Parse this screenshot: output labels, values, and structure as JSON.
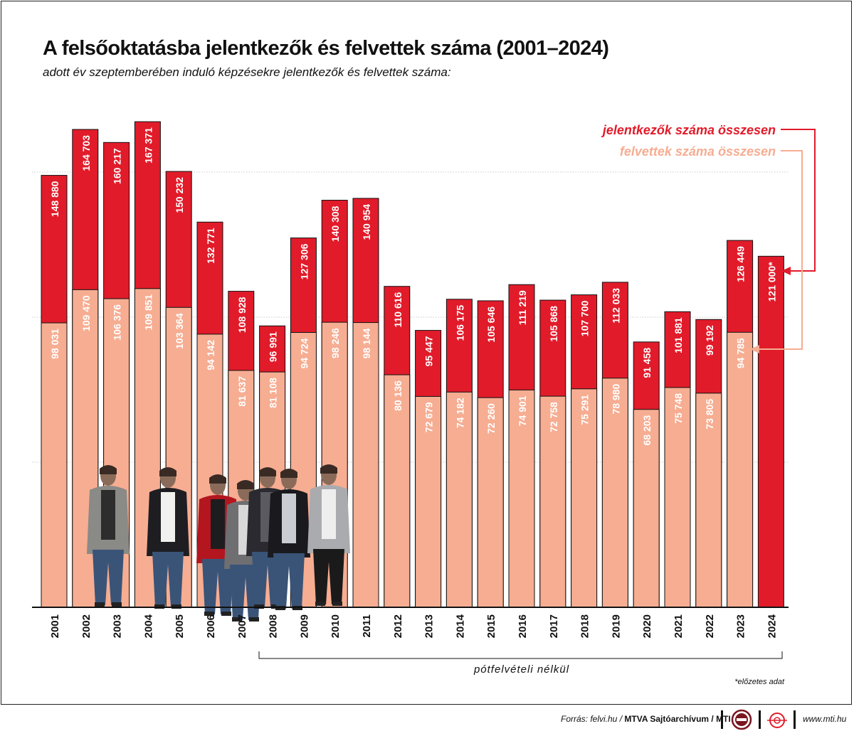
{
  "header": {
    "title": "A felsőoktatásba jelentkezők és felvettek száma (2001–2024)",
    "subtitle": "adott év szeptemberében induló képzésekre jelentkezők és felvettek száma:"
  },
  "colors": {
    "applicants": "#e11b2a",
    "admitted": "#f6ad92",
    "grid": "#bbbbbb",
    "text": "#111111"
  },
  "chart_data": {
    "type": "bar",
    "categories": [
      "2001",
      "2002",
      "2003",
      "2004",
      "2005",
      "2006",
      "2007",
      "2008",
      "2009",
      "2010",
      "2011",
      "2012",
      "2013",
      "2014",
      "2015",
      "2016",
      "2017",
      "2018",
      "2019",
      "2020",
      "2021",
      "2022",
      "2023",
      "2024"
    ],
    "series": [
      {
        "name": "jelentkezők száma összesen",
        "values": [
          148880,
          164703,
          160217,
          167371,
          150232,
          132771,
          108928,
          96991,
          127306,
          140308,
          140954,
          110616,
          95447,
          106175,
          105646,
          111219,
          105868,
          107700,
          112033,
          91458,
          101881,
          99192,
          126449,
          121000
        ],
        "labels": [
          "148 880",
          "164 703",
          "160 217",
          "167 371",
          "150 232",
          "132 771",
          "108 928",
          "96 991",
          "127 306",
          "140 308",
          "140 954",
          "110 616",
          "95 447",
          "106 175",
          "105 646",
          "111 219",
          "105 868",
          "107 700",
          "112 033",
          "91 458",
          "101 881",
          "99 192",
          "126 449",
          "121 000*"
        ]
      },
      {
        "name": "felvettek száma összesen",
        "values": [
          98031,
          109470,
          106376,
          109851,
          103364,
          94142,
          81637,
          81108,
          94724,
          98246,
          98144,
          80136,
          72679,
          74182,
          72260,
          74901,
          72758,
          75291,
          78980,
          68203,
          75748,
          73805,
          94785,
          null
        ],
        "labels": [
          "98 031",
          "109 470",
          "106 376",
          "109 851",
          "103 364",
          "94 142",
          "81 637",
          "81 108",
          "94 724",
          "98 246",
          "98 144",
          "80 136",
          "72 679",
          "74 182",
          "72 260",
          "74 901",
          "72 758",
          "75 291",
          "78 980",
          "68 203",
          "75 748",
          "73 805",
          "94 785",
          ""
        ]
      }
    ],
    "ylim": [
      0,
      150000
    ],
    "gridlines": [
      50000,
      100000,
      150000
    ],
    "legend_position": "top-right",
    "annotations": {
      "bracket_label": "pótfelvételi nélkül",
      "bracket_range": [
        "2008",
        "2024"
      ],
      "footnote": "*előzetes adat"
    }
  },
  "footer": {
    "source_prefix": "Forrás: felvi.hu / ",
    "source_bold": "MTVA Sajtóarchívum / MTI",
    "logo1_icon": "mtva-logo-icon",
    "logo2_icon": "mti-logo-icon",
    "website": "www.mti.hu"
  }
}
